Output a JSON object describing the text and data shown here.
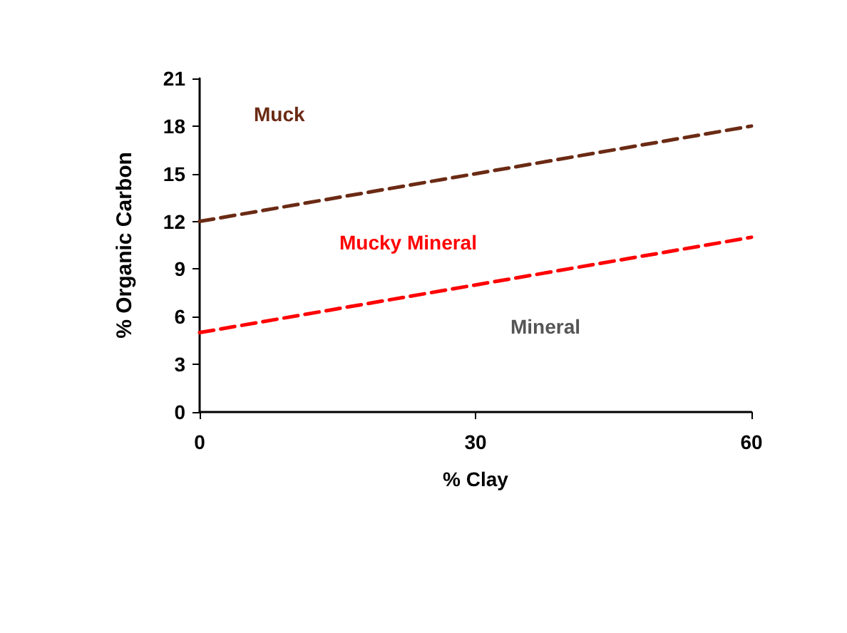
{
  "chart_data": {
    "type": "line",
    "xlabel": "% Clay",
    "ylabel": "% Organic Carbon",
    "x": [
      0,
      60
    ],
    "series": [
      {
        "color": "#6b2a14",
        "values": [
          12,
          18
        ]
      },
      {
        "color": "#ff0000",
        "values": [
          5,
          11
        ]
      }
    ],
    "xlim": [
      0,
      60
    ],
    "xticks": [
      0,
      30,
      60
    ],
    "ylim": [
      0,
      21
    ],
    "yticks": [
      0,
      3,
      6,
      9,
      12,
      15,
      18,
      21
    ],
    "line_style": "dashed",
    "marker": "none",
    "grid": false,
    "annotations": [
      "Muck",
      "Mucky Mineral",
      "Mineral"
    ]
  }
}
